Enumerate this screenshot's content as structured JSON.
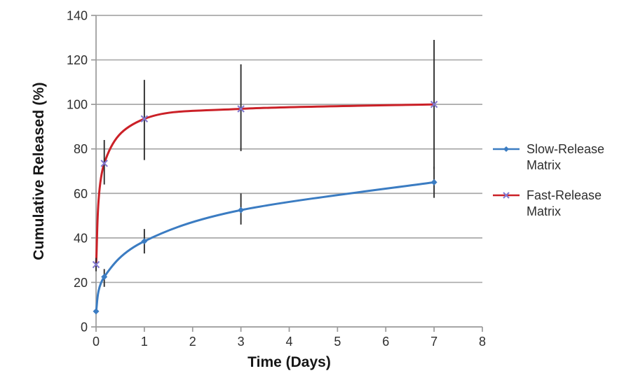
{
  "chart_data": {
    "type": "line",
    "smooth": true,
    "title": "",
    "xlabel": "Time (Days)",
    "ylabel": "Cumulative Released (%)",
    "xlim": [
      0,
      8
    ],
    "ylim": [
      0,
      140
    ],
    "x_ticks": [
      0,
      1,
      2,
      3,
      4,
      5,
      6,
      7,
      8
    ],
    "y_ticks": [
      0,
      20,
      40,
      60,
      80,
      100,
      120,
      140
    ],
    "grid": "horizontal",
    "legend_position": "right",
    "x": [
      0,
      0.17,
      1,
      3,
      7
    ],
    "series": [
      {
        "name": "Slow-Release Matrix",
        "color": "#3b7cc2",
        "marker": "diamond",
        "marker_color": "#3b7cc2",
        "values": [
          7,
          22.5,
          38.5,
          52.5,
          65
        ],
        "error_low": [
          7,
          18,
          33,
          46,
          58
        ],
        "error_high": [
          7,
          26,
          44,
          60,
          72
        ]
      },
      {
        "name": "Fast-Release Matrix",
        "color": "#cb2027",
        "marker": "x",
        "marker_color": "#8379cf",
        "values": [
          28,
          73.5,
          93.5,
          98,
          100
        ],
        "error_low": [
          25,
          64,
          75,
          79,
          71
        ],
        "error_high": [
          31,
          84,
          111,
          118,
          129
        ]
      }
    ],
    "colors": {
      "grid": "#a9a9a9",
      "axis": "#9a9a9a",
      "tick_label": "#2e2e2e",
      "error_bar": "#2e2e2e",
      "background": "#ffffff"
    }
  }
}
